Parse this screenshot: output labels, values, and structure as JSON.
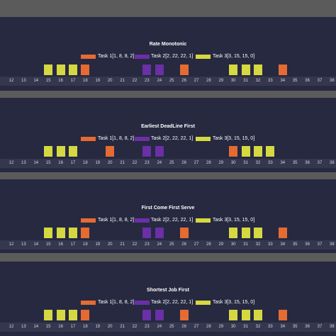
{
  "colors": {
    "task1": "#e56b32",
    "task2": "#6b2fa6",
    "task3": "#d6d841"
  },
  "chart_data": [
    {
      "type": "bar",
      "title": "Rate Monotonic",
      "legend": [
        {
          "label": "Task 1[1, 8, 8, 2]",
          "task": "task1"
        },
        {
          "label": "Task 2[2, 22, 22, 1]",
          "task": "task2"
        },
        {
          "label": "Task 3[3, 15, 15, 0]",
          "task": "task3"
        }
      ],
      "x_ticks": [
        12,
        13,
        14,
        15,
        16,
        17,
        18,
        19,
        20,
        21,
        22,
        23,
        24,
        25,
        26,
        27,
        28,
        29,
        30,
        31,
        32,
        33,
        34,
        35,
        36,
        37,
        38
      ],
      "slots": [
        {
          "x": 15,
          "task": "task3"
        },
        {
          "x": 16,
          "task": "task3"
        },
        {
          "x": 17,
          "task": "task3"
        },
        {
          "x": 18,
          "task": "task1"
        },
        {
          "x": 23,
          "task": "task2"
        },
        {
          "x": 24,
          "task": "task2"
        },
        {
          "x": 26,
          "task": "task1"
        },
        {
          "x": 30,
          "task": "task3"
        },
        {
          "x": 31,
          "task": "task3"
        },
        {
          "x": 32,
          "task": "task3"
        },
        {
          "x": 34,
          "task": "task1"
        }
      ]
    },
    {
      "type": "bar",
      "title": "Earliest DeadLine First",
      "legend": [
        {
          "label": "Task 1[1, 8, 8, 2]",
          "task": "task1"
        },
        {
          "label": "Task 2[2, 22, 22, 1]",
          "task": "task2"
        },
        {
          "label": "Task 3[3, 15, 15, 0]",
          "task": "task3"
        }
      ],
      "x_ticks": [
        12,
        13,
        14,
        15,
        16,
        17,
        18,
        19,
        20,
        21,
        22,
        23,
        24,
        25,
        26,
        27,
        28,
        29,
        30,
        31,
        32,
        33,
        34,
        35,
        36,
        37,
        38
      ],
      "slots": [
        {
          "x": 15,
          "task": "task3"
        },
        {
          "x": 16,
          "task": "task3"
        },
        {
          "x": 17,
          "task": "task3"
        },
        {
          "x": 20,
          "task": "task1"
        },
        {
          "x": 23,
          "task": "task2"
        },
        {
          "x": 24,
          "task": "task2"
        },
        {
          "x": 30,
          "task": "task1"
        },
        {
          "x": 31,
          "task": "task3"
        },
        {
          "x": 32,
          "task": "task3"
        },
        {
          "x": 33,
          "task": "task3"
        }
      ]
    },
    {
      "type": "bar",
      "title": "First Come First Serve",
      "legend": [
        {
          "label": "Task 1[1, 8, 8, 2]",
          "task": "task1"
        },
        {
          "label": "Task 2[2, 22, 22, 1]",
          "task": "task2"
        },
        {
          "label": "Task 3[3, 15, 15, 0]",
          "task": "task3"
        }
      ],
      "x_ticks": [
        12,
        13,
        14,
        15,
        16,
        17,
        18,
        19,
        20,
        21,
        22,
        23,
        24,
        25,
        26,
        27,
        28,
        29,
        30,
        31,
        32,
        33,
        34,
        35,
        36,
        37,
        38
      ],
      "slots": [
        {
          "x": 15,
          "task": "task3"
        },
        {
          "x": 16,
          "task": "task3"
        },
        {
          "x": 17,
          "task": "task3"
        },
        {
          "x": 18,
          "task": "task1"
        },
        {
          "x": 23,
          "task": "task2"
        },
        {
          "x": 24,
          "task": "task2"
        },
        {
          "x": 26,
          "task": "task1"
        },
        {
          "x": 30,
          "task": "task3"
        },
        {
          "x": 31,
          "task": "task3"
        },
        {
          "x": 32,
          "task": "task3"
        },
        {
          "x": 34,
          "task": "task1"
        }
      ]
    },
    {
      "type": "bar",
      "title": "Shortest Job First",
      "legend": [
        {
          "label": "Task 1[1, 8, 8, 2]",
          "task": "task1"
        },
        {
          "label": "Task 2[2, 22, 22, 1]",
          "task": "task2"
        },
        {
          "label": "Task 3[3, 15, 15, 0]",
          "task": "task3"
        }
      ],
      "x_ticks": [
        12,
        13,
        14,
        15,
        16,
        17,
        18,
        19,
        20,
        21,
        22,
        23,
        24,
        25,
        26,
        27,
        28,
        29,
        30,
        31,
        32,
        33,
        34,
        35,
        36,
        37,
        38
      ],
      "slots": [
        {
          "x": 15,
          "task": "task3"
        },
        {
          "x": 16,
          "task": "task3"
        },
        {
          "x": 17,
          "task": "task3"
        },
        {
          "x": 18,
          "task": "task1"
        },
        {
          "x": 23,
          "task": "task2"
        },
        {
          "x": 24,
          "task": "task2"
        },
        {
          "x": 26,
          "task": "task1"
        },
        {
          "x": 30,
          "task": "task3"
        },
        {
          "x": 31,
          "task": "task3"
        },
        {
          "x": 32,
          "task": "task3"
        },
        {
          "x": 34,
          "task": "task1"
        }
      ]
    }
  ]
}
